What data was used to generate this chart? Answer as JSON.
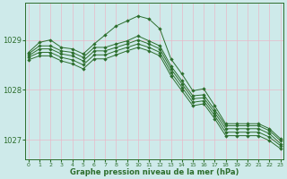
{
  "xlabel": "Graphe pression niveau de la mer (hPa)",
  "ylim": [
    1026.6,
    1029.75
  ],
  "xlim": [
    -0.3,
    23.3
  ],
  "yticks": [
    1027,
    1028,
    1029
  ],
  "xticks": [
    0,
    1,
    2,
    3,
    4,
    5,
    6,
    7,
    8,
    9,
    10,
    11,
    12,
    13,
    14,
    15,
    16,
    17,
    18,
    19,
    20,
    21,
    22,
    23
  ],
  "background_color": "#ceeaea",
  "grid_color": "#e8b8c8",
  "line_color": "#2d6e2d",
  "series": [
    {
      "x": [
        0,
        1,
        2,
        3,
        4,
        5,
        6,
        7,
        8,
        9,
        10,
        11,
        12,
        13,
        14,
        15,
        16,
        17,
        18,
        19,
        20,
        21,
        22,
        23
      ],
      "y": [
        1028.75,
        1028.95,
        1029.0,
        1028.85,
        1028.82,
        1028.72,
        1028.92,
        1029.1,
        1029.28,
        1029.38,
        1029.48,
        1029.42,
        1029.22,
        1028.62,
        1028.32,
        1027.98,
        1028.02,
        1027.68,
        1027.32,
        1027.32,
        1027.32,
        1027.32,
        1027.22,
        1027.02
      ]
    },
    {
      "x": [
        0,
        1,
        2,
        3,
        4,
        5,
        6,
        7,
        8,
        9,
        10,
        11,
        12,
        13,
        14,
        15,
        16,
        17,
        18,
        19,
        20,
        21,
        22,
        23
      ],
      "y": [
        1028.72,
        1028.88,
        1028.88,
        1028.78,
        1028.75,
        1028.65,
        1028.85,
        1028.85,
        1028.92,
        1028.98,
        1029.08,
        1028.98,
        1028.88,
        1028.48,
        1028.18,
        1027.88,
        1027.9,
        1027.6,
        1027.28,
        1027.28,
        1027.28,
        1027.28,
        1027.18,
        1026.98
      ]
    },
    {
      "x": [
        0,
        1,
        2,
        3,
        4,
        5,
        6,
        7,
        8,
        9,
        10,
        11,
        12,
        13,
        14,
        15,
        16,
        17,
        18,
        19,
        20,
        21,
        22,
        23
      ],
      "y": [
        1028.68,
        1028.82,
        1028.82,
        1028.72,
        1028.68,
        1028.58,
        1028.78,
        1028.78,
        1028.85,
        1028.92,
        1029.0,
        1028.92,
        1028.82,
        1028.42,
        1028.12,
        1027.82,
        1027.84,
        1027.54,
        1027.22,
        1027.22,
        1027.22,
        1027.22,
        1027.12,
        1026.92
      ]
    },
    {
      "x": [
        0,
        1,
        2,
        3,
        4,
        5,
        6,
        7,
        8,
        9,
        10,
        11,
        12,
        13,
        14,
        15,
        16,
        17,
        18,
        19,
        20,
        21,
        22,
        23
      ],
      "y": [
        1028.65,
        1028.75,
        1028.75,
        1028.65,
        1028.6,
        1028.5,
        1028.7,
        1028.7,
        1028.78,
        1028.85,
        1028.92,
        1028.85,
        1028.75,
        1028.35,
        1028.05,
        1027.75,
        1027.78,
        1027.48,
        1027.15,
        1027.15,
        1027.15,
        1027.15,
        1027.05,
        1026.88
      ]
    },
    {
      "x": [
        0,
        1,
        2,
        3,
        4,
        5,
        6,
        7,
        8,
        9,
        10,
        11,
        12,
        13,
        14,
        15,
        16,
        17,
        18,
        19,
        20,
        21,
        22,
        23
      ],
      "y": [
        1028.6,
        1028.68,
        1028.68,
        1028.58,
        1028.52,
        1028.42,
        1028.62,
        1028.62,
        1028.7,
        1028.78,
        1028.85,
        1028.78,
        1028.68,
        1028.28,
        1027.98,
        1027.68,
        1027.72,
        1027.42,
        1027.08,
        1027.08,
        1027.08,
        1027.08,
        1026.98,
        1026.82
      ]
    }
  ]
}
